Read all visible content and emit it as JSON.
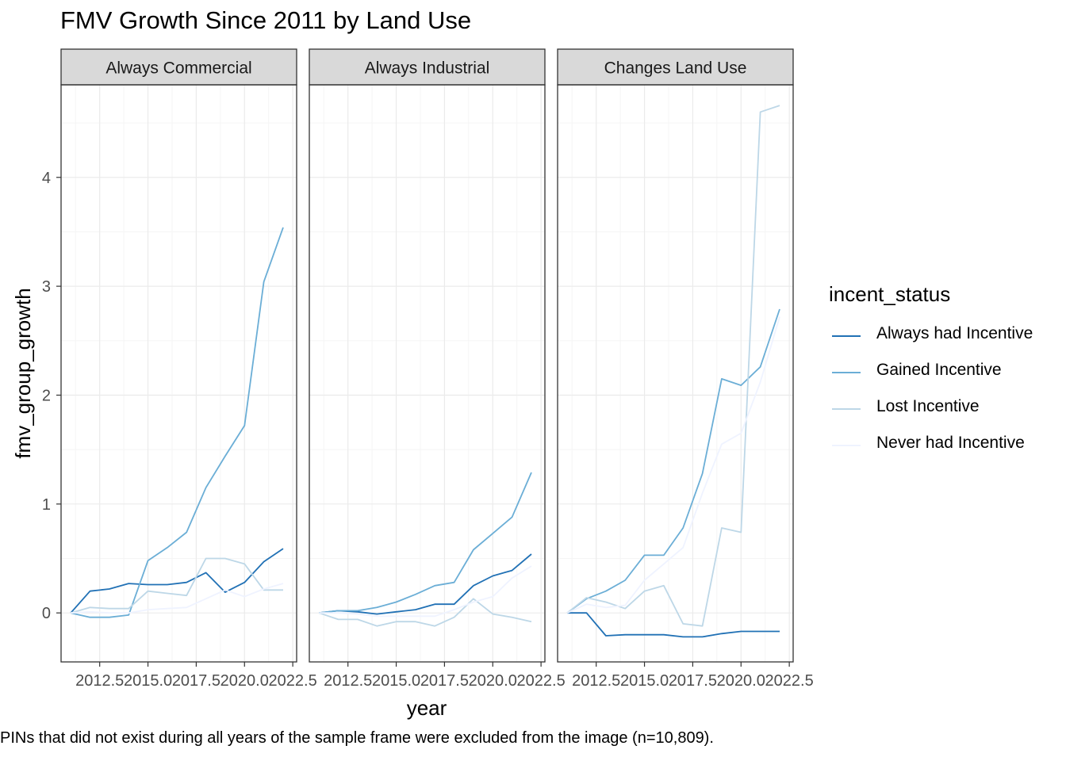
{
  "title": "FMV Growth Since 2011 by Land Use",
  "caption": "PINs that did not exist during all years of the sample frame were excluded from the image (n=10,809).",
  "colors": {
    "panel_strip": "#D9D9D9",
    "grid_major": "#EBEBEB",
    "grid_minor": "#F5F5F5",
    "border": "#333333",
    "axis_text": "#4D4D4D"
  },
  "legend": {
    "title": "incent_status",
    "items": [
      {
        "label": "Always had Incentive",
        "color": "#2171B5"
      },
      {
        "label": "Gained Incentive",
        "color": "#6BAED6"
      },
      {
        "label": "Lost Incentive",
        "color": "#BDD7E7"
      },
      {
        "label": "Never had Incentive",
        "color": "#EFF3FF"
      }
    ]
  },
  "chart_data": {
    "type": "line",
    "xlabel": "year",
    "ylabel": "fmv_group_growth",
    "xlim": [
      2010.5,
      2022.7
    ],
    "ylim": [
      -0.45,
      4.85
    ],
    "x_ticks": [
      2012.5,
      2015.0,
      2017.5,
      2020.0,
      2022.5
    ],
    "x_tick_labels": [
      "2012.5",
      "2015.0",
      "2017.5",
      "2020.0",
      "2022.5"
    ],
    "y_ticks": [
      0,
      1,
      2,
      3,
      4
    ],
    "y_tick_labels": [
      "0",
      "1",
      "2",
      "3",
      "4"
    ],
    "x": [
      2011,
      2012,
      2013,
      2014,
      2015,
      2016,
      2017,
      2018,
      2019,
      2020,
      2021,
      2022
    ],
    "panels": [
      {
        "label": "Always Commercial",
        "series": [
          {
            "name": "Always had Incentive",
            "values": [
              0,
              0.2,
              0.22,
              0.27,
              0.26,
              0.26,
              0.28,
              0.37,
              0.19,
              0.28,
              0.47,
              0.59
            ]
          },
          {
            "name": "Gained Incentive",
            "values": [
              0,
              -0.04,
              -0.04,
              -0.02,
              0.48,
              0.6,
              0.74,
              1.15,
              1.44,
              1.72,
              3.04,
              3.54
            ]
          },
          {
            "name": "Lost Incentive",
            "values": [
              0,
              0.05,
              0.04,
              0.04,
              0.2,
              0.18,
              0.16,
              0.5,
              0.5,
              0.45,
              0.21,
              0.21
            ]
          },
          {
            "name": "Never had Incentive",
            "values": [
              0,
              0.01,
              0.0,
              0.0,
              0.03,
              0.04,
              0.05,
              0.13,
              0.21,
              0.15,
              0.22,
              0.27
            ]
          }
        ]
      },
      {
        "label": "Always Industrial",
        "series": [
          {
            "name": "Always had Incentive",
            "values": [
              0,
              0.02,
              0.01,
              -0.01,
              0.01,
              0.03,
              0.08,
              0.08,
              0.25,
              0.34,
              0.39,
              0.54
            ]
          },
          {
            "name": "Gained Incentive",
            "values": [
              0,
              0.02,
              0.02,
              0.05,
              0.1,
              0.17,
              0.25,
              0.28,
              0.58,
              0.73,
              0.88,
              1.29
            ]
          },
          {
            "name": "Lost Incentive",
            "values": [
              0,
              -0.06,
              -0.06,
              -0.12,
              -0.08,
              -0.08,
              -0.12,
              -0.04,
              0.13,
              -0.01,
              -0.04,
              -0.08
            ]
          },
          {
            "name": "Never had Incentive",
            "values": [
              0,
              0.0,
              -0.01,
              -0.03,
              -0.03,
              -0.03,
              -0.03,
              0.03,
              0.1,
              0.15,
              0.32,
              0.43
            ]
          }
        ]
      },
      {
        "label": "Changes Land Use",
        "series": [
          {
            "name": "Always had Incentive",
            "values": [
              0,
              0.0,
              -0.21,
              -0.2,
              -0.2,
              -0.2,
              -0.22,
              -0.22,
              -0.19,
              -0.17,
              -0.17,
              -0.17
            ]
          },
          {
            "name": "Gained Incentive",
            "values": [
              0,
              0.13,
              0.2,
              0.3,
              0.53,
              0.53,
              0.78,
              1.28,
              2.15,
              2.09,
              2.26,
              2.79
            ]
          },
          {
            "name": "Lost Incentive",
            "values": [
              0,
              0.14,
              0.1,
              0.04,
              0.2,
              0.25,
              -0.1,
              -0.12,
              0.78,
              0.74,
              4.6,
              4.66
            ]
          },
          {
            "name": "Never had Incentive",
            "values": [
              0,
              0.08,
              0.05,
              0.07,
              0.3,
              0.45,
              0.6,
              1.1,
              1.55,
              1.65,
              2.12,
              2.72
            ]
          }
        ]
      }
    ]
  }
}
